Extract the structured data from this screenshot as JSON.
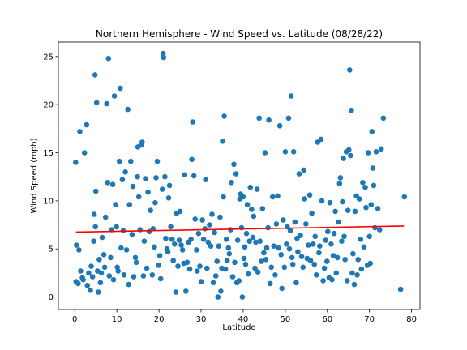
{
  "chart_data": {
    "type": "scatter",
    "title": "Northern Hemisphere - Wind Speed vs. Latitude (08/28/22)",
    "xlabel": "Latitude",
    "ylabel": "Wind Speed (mph)",
    "xlim": [
      -3.9,
      82.0
    ],
    "ylim": [
      -1.3,
      26.5
    ],
    "xticks": [
      0,
      10,
      20,
      30,
      40,
      50,
      60,
      70,
      80
    ],
    "yticks": [
      0,
      5,
      10,
      15,
      20,
      25
    ],
    "grid": false,
    "legend": "none",
    "marker_color": "#1f77b4",
    "regression": {
      "color": "#ff0000",
      "x": [
        0.3,
        78.2
      ],
      "y": [
        6.75,
        7.38
      ]
    },
    "points": [
      [
        0.2,
        14.0
      ],
      [
        0.4,
        5.4
      ],
      [
        0.3,
        1.6
      ],
      [
        0.8,
        1.4
      ],
      [
        1.0,
        4.9
      ],
      [
        1.2,
        17.2
      ],
      [
        1.4,
        2.7
      ],
      [
        1.8,
        2.0
      ],
      [
        2.0,
        1.8
      ],
      [
        2.3,
        15.0
      ],
      [
        2.8,
        17.9
      ],
      [
        3.0,
        1.2
      ],
      [
        3.3,
        2.5
      ],
      [
        3.7,
        0.7
      ],
      [
        3.9,
        3.2
      ],
      [
        4.2,
        2.1
      ],
      [
        4.5,
        5.8
      ],
      [
        4.6,
        8.6
      ],
      [
        4.8,
        23.1
      ],
      [
        4.9,
        7.3
      ],
      [
        5.0,
        11.0
      ],
      [
        5.2,
        20.2
      ],
      [
        5.4,
        2.7
      ],
      [
        5.6,
        0.5
      ],
      [
        5.8,
        3.9
      ],
      [
        6.1,
        1.5
      ],
      [
        6.3,
        2.5
      ],
      [
        6.5,
        6.2
      ],
      [
        6.9,
        4.4
      ],
      [
        7.1,
        3.1
      ],
      [
        7.3,
        8.3
      ],
      [
        7.6,
        20.1
      ],
      [
        7.8,
        11.9
      ],
      [
        8.0,
        24.8
      ],
      [
        8.2,
        2.2
      ],
      [
        8.5,
        4.1
      ],
      [
        8.8,
        7.0
      ],
      [
        9.0,
        11.7
      ],
      [
        9.2,
        1.8
      ],
      [
        9.4,
        20.9
      ],
      [
        9.7,
        9.6
      ],
      [
        9.9,
        7.3
      ],
      [
        10.1,
        3.1
      ],
      [
        10.3,
        2.7
      ],
      [
        10.6,
        14.1
      ],
      [
        10.8,
        21.7
      ],
      [
        11.0,
        5.1
      ],
      [
        11.3,
        12.2
      ],
      [
        11.5,
        6.9
      ],
      [
        11.7,
        2.3
      ],
      [
        12.0,
        13.0
      ],
      [
        12.3,
        4.9
      ],
      [
        12.6,
        19.5
      ],
      [
        12.8,
        1.3
      ],
      [
        13.0,
        9.6
      ],
      [
        13.3,
        14.1
      ],
      [
        13.6,
        6.5
      ],
      [
        13.8,
        11.5
      ],
      [
        14.0,
        2.1
      ],
      [
        14.4,
        4.1
      ],
      [
        14.6,
        3.6
      ],
      [
        14.9,
        12.5
      ],
      [
        15.0,
        15.6
      ],
      [
        15.2,
        10.4
      ],
      [
        15.5,
        7.0
      ],
      [
        15.8,
        15.8
      ],
      [
        16.0,
        16.1
      ],
      [
        16.3,
        2.2
      ],
      [
        16.5,
        5.8
      ],
      [
        16.8,
        12.3
      ],
      [
        17.1,
        3.0
      ],
      [
        17.4,
        10.9
      ],
      [
        17.7,
        6.8
      ],
      [
        18.0,
        9.0
      ],
      [
        18.4,
        2.3
      ],
      [
        18.6,
        7.1
      ],
      [
        18.9,
        5.2
      ],
      [
        19.1,
        9.8
      ],
      [
        19.3,
        12.4
      ],
      [
        19.6,
        14.1
      ],
      [
        19.9,
        3.3
      ],
      [
        20.2,
        4.3
      ],
      [
        20.4,
        1.9
      ],
      [
        20.8,
        11.2
      ],
      [
        21.0,
        25.3
      ],
      [
        21.1,
        24.9
      ],
      [
        21.4,
        12.5
      ],
      [
        21.6,
        6.1
      ],
      [
        21.9,
        5.0
      ],
      [
        22.1,
        4.7
      ],
      [
        22.3,
        10.3
      ],
      [
        22.5,
        11.6
      ],
      [
        22.8,
        7.3
      ],
      [
        23.1,
        6.0
      ],
      [
        23.4,
        3.8
      ],
      [
        23.7,
        5.5
      ],
      [
        24.0,
        0.5
      ],
      [
        24.2,
        8.7
      ],
      [
        24.5,
        3.2
      ],
      [
        24.8,
        5.9
      ],
      [
        25.0,
        8.9
      ],
      [
        25.3,
        5.4
      ],
      [
        25.6,
        4.9
      ],
      [
        25.9,
        3.5
      ],
      [
        26.1,
        12.7
      ],
      [
        26.4,
        0.6
      ],
      [
        26.7,
        3.6
      ],
      [
        27.0,
        5.7
      ],
      [
        27.3,
        2.9
      ],
      [
        27.6,
        6.0
      ],
      [
        27.8,
        14.3
      ],
      [
        28.0,
        18.2
      ],
      [
        28.3,
        12.6
      ],
      [
        28.6,
        8.1
      ],
      [
        28.9,
        4.9
      ],
      [
        29.1,
        2.7
      ],
      [
        29.4,
        6.6
      ],
      [
        29.7,
        3.2
      ],
      [
        30.0,
        1.6
      ],
      [
        30.3,
        8.0
      ],
      [
        30.6,
        6.0
      ],
      [
        30.9,
        7.1
      ],
      [
        31.1,
        12.2
      ],
      [
        31.4,
        3.0
      ],
      [
        31.7,
        5.7
      ],
      [
        32.0,
        7.5
      ],
      [
        32.3,
        5.3
      ],
      [
        32.6,
        8.6
      ],
      [
        32.9,
        1.5
      ],
      [
        33.2,
        6.7
      ],
      [
        33.5,
        2.2
      ],
      [
        33.8,
        3.7
      ],
      [
        34.0,
        0.0
      ],
      [
        34.2,
        5.3
      ],
      [
        34.5,
        8.3
      ],
      [
        34.7,
        0.6
      ],
      [
        34.9,
        3.0
      ],
      [
        35.1,
        16.2
      ],
      [
        35.3,
        10.4
      ],
      [
        35.5,
        18.8
      ],
      [
        35.8,
        2.9
      ],
      [
        36.0,
        6.0
      ],
      [
        36.2,
        3.8
      ],
      [
        36.5,
        5.1
      ],
      [
        36.7,
        4.5
      ],
      [
        37.0,
        7.0
      ],
      [
        37.2,
        11.9
      ],
      [
        37.5,
        2.1
      ],
      [
        37.8,
        13.8
      ],
      [
        38.0,
        3.6
      ],
      [
        38.3,
        12.8
      ],
      [
        38.5,
        1.5
      ],
      [
        38.7,
        5.9
      ],
      [
        39.0,
        1.7
      ],
      [
        39.2,
        10.2
      ],
      [
        39.4,
        10.7
      ],
      [
        39.6,
        7.2
      ],
      [
        39.8,
        0.0
      ],
      [
        40.0,
        10.4
      ],
      [
        40.2,
        4.0
      ],
      [
        40.4,
        5.2
      ],
      [
        40.6,
        3.4
      ],
      [
        40.8,
        6.6
      ],
      [
        41.0,
        9.6
      ],
      [
        41.2,
        2.4
      ],
      [
        41.5,
        5.8
      ],
      [
        41.7,
        11.4
      ],
      [
        42.0,
        9.1
      ],
      [
        42.3,
        6.2
      ],
      [
        42.5,
        8.4
      ],
      [
        42.8,
        3.0
      ],
      [
        43.0,
        5.7
      ],
      [
        43.3,
        11.2
      ],
      [
        43.5,
        2.6
      ],
      [
        43.8,
        18.6
      ],
      [
        44.0,
        5.8
      ],
      [
        44.3,
        3.7
      ],
      [
        44.6,
        9.2
      ],
      [
        44.9,
        4.6
      ],
      [
        45.2,
        15.0
      ],
      [
        45.4,
        3.9
      ],
      [
        45.6,
        5.1
      ],
      [
        45.9,
        7.2
      ],
      [
        46.1,
        18.4
      ],
      [
        46.4,
        1.4
      ],
      [
        46.7,
        3.1
      ],
      [
        47.0,
        10.4
      ],
      [
        47.3,
        5.3
      ],
      [
        47.6,
        2.3
      ],
      [
        47.9,
        7.6
      ],
      [
        48.2,
        10.5
      ],
      [
        48.4,
        5.1
      ],
      [
        48.7,
        17.8
      ],
      [
        49.0,
        4.4
      ],
      [
        49.2,
        0.9
      ],
      [
        49.5,
        8.0
      ],
      [
        49.8,
        3.1
      ],
      [
        50.0,
        15.1
      ],
      [
        50.3,
        5.5
      ],
      [
        50.5,
        7.3
      ],
      [
        50.8,
        18.6
      ],
      [
        51.0,
        5.0
      ],
      [
        51.2,
        6.9
      ],
      [
        51.4,
        20.9
      ],
      [
        51.6,
        4.1
      ],
      [
        51.8,
        3.4
      ],
      [
        52.0,
        15.1
      ],
      [
        52.3,
        7.8
      ],
      [
        52.6,
        1.5
      ],
      [
        52.8,
        6.1
      ],
      [
        53.0,
        4.7
      ],
      [
        53.3,
        12.8
      ],
      [
        53.6,
        6.4
      ],
      [
        53.9,
        4.2
      ],
      [
        54.2,
        3.1
      ],
      [
        54.4,
        13.2
      ],
      [
        54.6,
        10.2
      ],
      [
        54.9,
        7.6
      ],
      [
        55.2,
        4.0
      ],
      [
        55.5,
        5.4
      ],
      [
        55.8,
        10.6
      ],
      [
        56.0,
        3.8
      ],
      [
        56.3,
        8.7
      ],
      [
        56.6,
        5.5
      ],
      [
        56.9,
        3.4
      ],
      [
        57.1,
        6.3
      ],
      [
        57.4,
        2.3
      ],
      [
        57.7,
        16.1
      ],
      [
        58.0,
        4.6
      ],
      [
        58.2,
        5.3
      ],
      [
        58.5,
        16.4
      ],
      [
        58.7,
        10.0
      ],
      [
        59.0,
        1.7
      ],
      [
        59.3,
        3.0
      ],
      [
        59.6,
        5.9
      ],
      [
        59.9,
        3.7
      ],
      [
        60.1,
        6.8
      ],
      [
        60.4,
        2.0
      ],
      [
        60.6,
        9.8
      ],
      [
        60.9,
        5.5
      ],
      [
        61.1,
        1.8
      ],
      [
        61.4,
        4.3
      ],
      [
        61.6,
        6.6
      ],
      [
        61.9,
        8.9
      ],
      [
        62.1,
        2.5
      ],
      [
        62.4,
        4.1
      ],
      [
        62.7,
        7.8
      ],
      [
        62.9,
        11.8
      ],
      [
        63.1,
        12.4
      ],
      [
        63.4,
        5.8
      ],
      [
        63.6,
        9.9
      ],
      [
        63.8,
        14.4
      ],
      [
        64.0,
        6.3
      ],
      [
        64.2,
        3.9
      ],
      [
        64.5,
        15.1
      ],
      [
        64.7,
        1.7
      ],
      [
        64.9,
        9.0
      ],
      [
        65.1,
        15.3
      ],
      [
        65.3,
        23.6
      ],
      [
        65.5,
        14.7
      ],
      [
        65.7,
        19.4
      ],
      [
        65.9,
        2.5
      ],
      [
        66.1,
        4.5
      ],
      [
        66.4,
        1.3
      ],
      [
        66.6,
        8.9
      ],
      [
        66.9,
        10.5
      ],
      [
        67.1,
        2.3
      ],
      [
        67.3,
        3.9
      ],
      [
        67.6,
        10.2
      ],
      [
        67.9,
        6.0
      ],
      [
        68.1,
        2.9
      ],
      [
        68.4,
        11.9
      ],
      [
        68.7,
        5.2
      ],
      [
        69.0,
        11.4
      ],
      [
        69.2,
        9.3
      ],
      [
        69.5,
        3.3
      ],
      [
        69.7,
        15.0
      ],
      [
        70.0,
        6.3
      ],
      [
        70.2,
        3.5
      ],
      [
        70.4,
        9.6
      ],
      [
        70.6,
        17.2
      ],
      [
        70.8,
        13.4
      ],
      [
        71.0,
        11.6
      ],
      [
        71.3,
        7.2
      ],
      [
        71.6,
        15.1
      ],
      [
        72.0,
        9.2
      ],
      [
        72.4,
        7.0
      ],
      [
        72.8,
        15.4
      ],
      [
        73.3,
        18.6
      ],
      [
        77.4,
        0.8
      ],
      [
        78.3,
        10.4
      ]
    ]
  }
}
